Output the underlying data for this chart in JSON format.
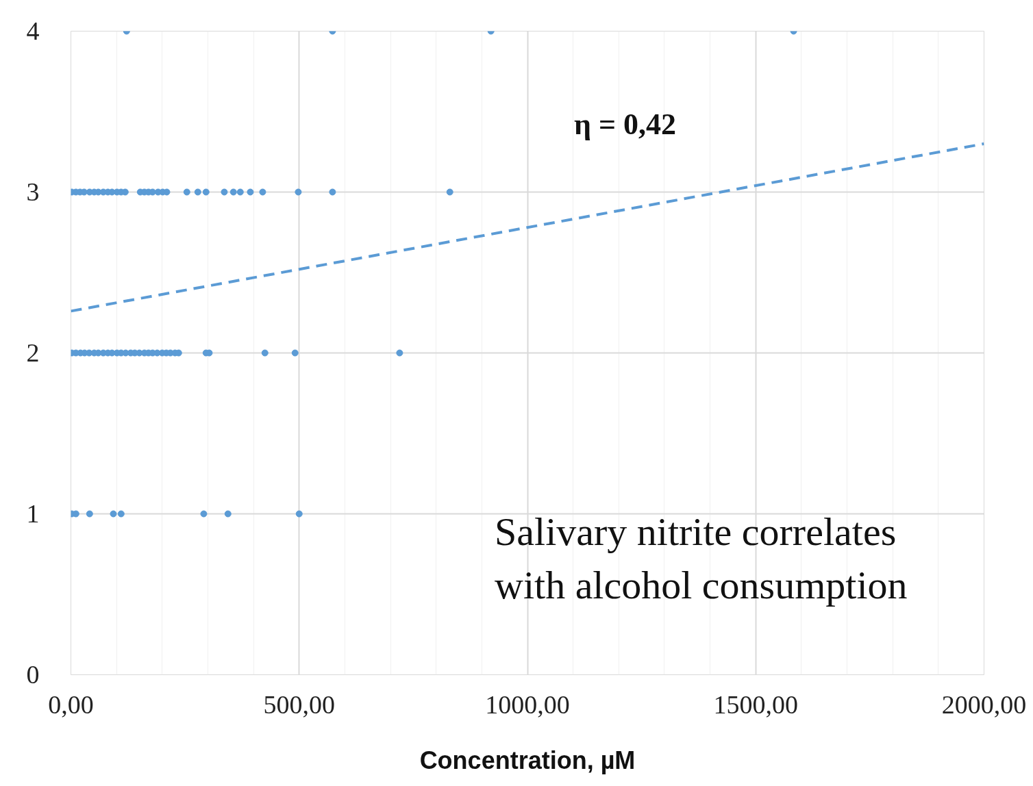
{
  "chart_data": {
    "type": "scatter",
    "xlabel": "Concentration, µM",
    "annotations": [
      "η = 0,42",
      "Salivary nitrite correlates\nwith alcohol consumption"
    ],
    "xlim": [
      0,
      2000
    ],
    "ylim": [
      0,
      4
    ],
    "xticks": [
      {
        "value": 0,
        "label": "0,00"
      },
      {
        "value": 500,
        "label": "500,00"
      },
      {
        "value": 1000,
        "label": "1000,00"
      },
      {
        "value": 1500,
        "label": "1500,00"
      },
      {
        "value": 2000,
        "label": "2000,00"
      }
    ],
    "yticks": [
      0,
      1,
      2,
      3,
      4
    ],
    "grid": true,
    "marker": "circle",
    "series": [
      {
        "color": "#5b9bd5",
        "x": [
          122,
          573,
          920,
          1583
        ],
        "values": [
          4,
          4,
          4,
          4
        ]
      },
      {
        "color": "#5b9bd5",
        "x": [
          2,
          11,
          20,
          29,
          41,
          51,
          60,
          71,
          81,
          90,
          101,
          110,
          119,
          152,
          161,
          170,
          179,
          191,
          201,
          210,
          254,
          278,
          296,
          336,
          356,
          371,
          393,
          420,
          498,
          573,
          830
        ],
        "values": [
          3,
          3,
          3,
          3,
          3,
          3,
          3,
          3,
          3,
          3,
          3,
          3,
          3,
          3,
          3,
          3,
          3,
          3,
          3,
          3,
          3,
          3,
          3,
          3,
          3,
          3,
          3,
          3,
          3,
          3,
          3
        ]
      },
      {
        "color": "#5b9bd5",
        "x": [
          2,
          11,
          21,
          30,
          40,
          51,
          60,
          71,
          81,
          90,
          101,
          110,
          120,
          131,
          140,
          150,
          161,
          170,
          179,
          189,
          200,
          209,
          218,
          228,
          236,
          296,
          303,
          425,
          491,
          720
        ],
        "values": [
          2,
          2,
          2,
          2,
          2,
          2,
          2,
          2,
          2,
          2,
          2,
          2,
          2,
          2,
          2,
          2,
          2,
          2,
          2,
          2,
          2,
          2,
          2,
          2,
          2,
          2,
          2,
          2,
          2,
          2
        ]
      },
      {
        "color": "#5b9bd5",
        "x": [
          2,
          11,
          41,
          93,
          110,
          291,
          344,
          500
        ],
        "values": [
          1,
          1,
          1,
          1,
          1,
          1,
          1,
          1
        ]
      },
      {
        "type": "line",
        "line_style": "dashed",
        "marker": "none",
        "color": "#5b9bd5",
        "x": [
          0,
          2000
        ],
        "values": [
          2.26,
          3.3
        ]
      }
    ]
  }
}
